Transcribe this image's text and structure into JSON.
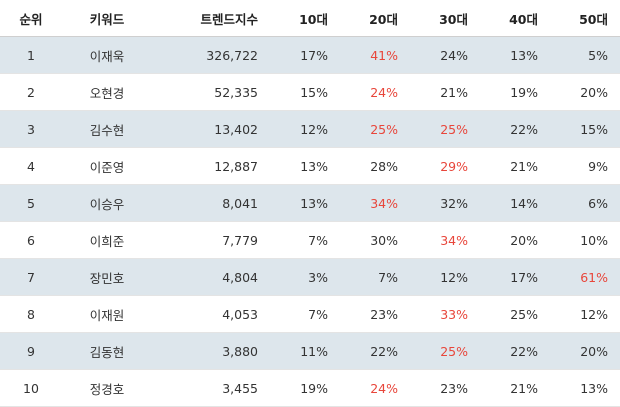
{
  "headers": [
    "순위",
    "키워드",
    "트렌드지수",
    "10대",
    "20대",
    "30대",
    "40대",
    "50대"
  ],
  "highlight_color": "#e8463b",
  "rows": [
    {
      "rank": "1",
      "keyword": "이재욱",
      "index": "326,722",
      "a10": "17%",
      "a20": "41%",
      "a30": "24%",
      "a40": "13%",
      "a50": "5%",
      "hot": [
        "a20"
      ]
    },
    {
      "rank": "2",
      "keyword": "오현경",
      "index": "52,335",
      "a10": "15%",
      "a20": "24%",
      "a30": "21%",
      "a40": "19%",
      "a50": "20%",
      "hot": [
        "a20"
      ]
    },
    {
      "rank": "3",
      "keyword": "김수현",
      "index": "13,402",
      "a10": "12%",
      "a20": "25%",
      "a30": "25%",
      "a40": "22%",
      "a50": "15%",
      "hot": [
        "a20",
        "a30"
      ]
    },
    {
      "rank": "4",
      "keyword": "이준영",
      "index": "12,887",
      "a10": "13%",
      "a20": "28%",
      "a30": "29%",
      "a40": "21%",
      "a50": "9%",
      "hot": [
        "a30"
      ]
    },
    {
      "rank": "5",
      "keyword": "이승우",
      "index": "8,041",
      "a10": "13%",
      "a20": "34%",
      "a30": "32%",
      "a40": "14%",
      "a50": "6%",
      "hot": [
        "a20"
      ]
    },
    {
      "rank": "6",
      "keyword": "이희준",
      "index": "7,779",
      "a10": "7%",
      "a20": "30%",
      "a30": "34%",
      "a40": "20%",
      "a50": "10%",
      "hot": [
        "a30"
      ]
    },
    {
      "rank": "7",
      "keyword": "장민호",
      "index": "4,804",
      "a10": "3%",
      "a20": "7%",
      "a30": "12%",
      "a40": "17%",
      "a50": "61%",
      "hot": [
        "a50"
      ]
    },
    {
      "rank": "8",
      "keyword": "이재원",
      "index": "4,053",
      "a10": "7%",
      "a20": "23%",
      "a30": "33%",
      "a40": "25%",
      "a50": "12%",
      "hot": [
        "a30"
      ]
    },
    {
      "rank": "9",
      "keyword": "김동현",
      "index": "3,880",
      "a10": "11%",
      "a20": "22%",
      "a30": "25%",
      "a40": "22%",
      "a50": "20%",
      "hot": [
        "a30"
      ]
    },
    {
      "rank": "10",
      "keyword": "정경호",
      "index": "3,455",
      "a10": "19%",
      "a20": "24%",
      "a30": "23%",
      "a40": "21%",
      "a50": "13%",
      "hot": [
        "a20"
      ]
    }
  ]
}
